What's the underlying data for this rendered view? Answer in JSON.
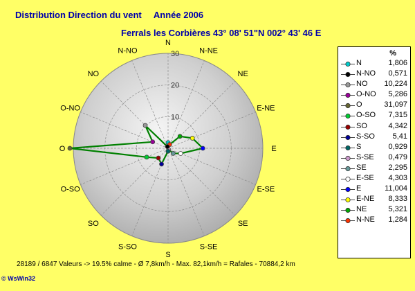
{
  "header": {
    "title_left": "Distribution Direction du vent",
    "title_right": "Année 2006",
    "subtitle": "Ferrals les Corbières 43° 08' 51\"N  002° 43' 46 E"
  },
  "chart_data": {
    "type": "polar-line",
    "rmax": 30,
    "ticks": [
      10,
      20,
      30
    ],
    "direction_labels": [
      "N",
      "N-NE",
      "NE",
      "E-NE",
      "E",
      "E-SE",
      "SE",
      "S-SE",
      "S",
      "S-SO",
      "SO",
      "O-SO",
      "O",
      "O-NO",
      "NO",
      "N-NO"
    ],
    "legend_unit": "%",
    "series": [
      {
        "name": "N",
        "value": 1.806,
        "label": "1,806",
        "color": "#00cccc"
      },
      {
        "name": "N-NO",
        "value": 0.571,
        "label": "0,571",
        "color": "#000000"
      },
      {
        "name": "NO",
        "value": 10.224,
        "label": "10,224",
        "color": "#999999"
      },
      {
        "name": "O-NO",
        "value": 5.286,
        "label": "5,286",
        "color": "#990099"
      },
      {
        "name": "O",
        "value": 31.097,
        "label": "31,097",
        "color": "#666633"
      },
      {
        "name": "O-SO",
        "value": 7.315,
        "label": "7,315",
        "color": "#00cc33"
      },
      {
        "name": "SO",
        "value": 4.342,
        "label": "4,342",
        "color": "#990000"
      },
      {
        "name": "S-SO",
        "value": 5.41,
        "label": "5,41",
        "color": "#000099"
      },
      {
        "name": "S",
        "value": 0.929,
        "label": "0,929",
        "color": "#006666"
      },
      {
        "name": "S-SE",
        "value": 0.479,
        "label": "0,479",
        "color": "#cc99cc"
      },
      {
        "name": "SE",
        "value": 2.295,
        "label": "2,295",
        "color": "#669999"
      },
      {
        "name": "E-SE",
        "value": 4.303,
        "label": "4,303",
        "color": "#ffffff"
      },
      {
        "name": "E",
        "value": 11.004,
        "label": "11,004",
        "color": "#0000ff"
      },
      {
        "name": "E-NE",
        "value": 8.333,
        "label": "8,333",
        "color": "#ffff00"
      },
      {
        "name": "NE",
        "value": 5.321,
        "label": "5,321",
        "color": "#00aa00"
      },
      {
        "name": "N-NE",
        "value": 1.284,
        "label": "1,284",
        "color": "#ff3300"
      }
    ],
    "line_color": "#008000"
  },
  "footer": {
    "text": "28189 / 6847 Valeurs  -> 19.5% calme   -   Ø 7,8km/h  -  Max. 82,1km/h = Rafales   -   70884,2 km"
  },
  "logo": {
    "text": "© WsWin32"
  }
}
